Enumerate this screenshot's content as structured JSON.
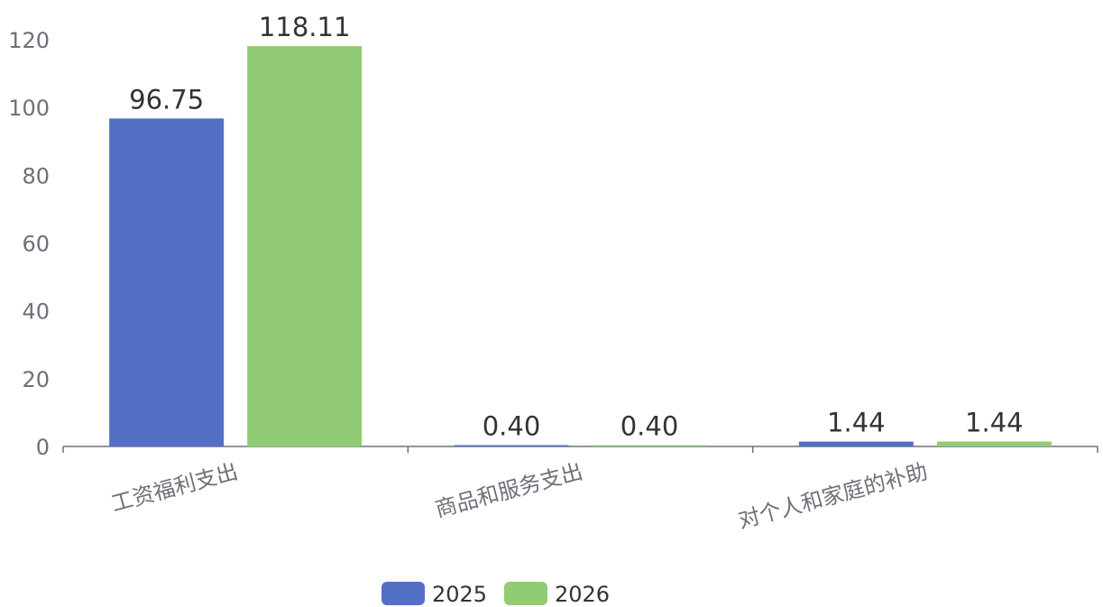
{
  "chart_data": {
    "type": "bar",
    "categories": [
      "工资福利支出",
      "商品和服务支出",
      "对个人和家庭的补助"
    ],
    "series": [
      {
        "name": "2025",
        "values": [
          96.75,
          0.4,
          1.44
        ],
        "labels": [
          "96.75",
          "0.40",
          "1.44"
        ],
        "color": "#5470c6"
      },
      {
        "name": "2026",
        "values": [
          118.11,
          0.4,
          1.44
        ],
        "labels": [
          "118.11",
          "0.40",
          "1.44"
        ],
        "color": "#91cc75"
      }
    ],
    "ylim": [
      0,
      120
    ],
    "yticks": [
      0,
      20,
      40,
      60,
      80,
      100,
      120
    ],
    "title": "",
    "xlabel": "",
    "ylabel": "",
    "legend_position": "bottom-center",
    "grid": false
  }
}
